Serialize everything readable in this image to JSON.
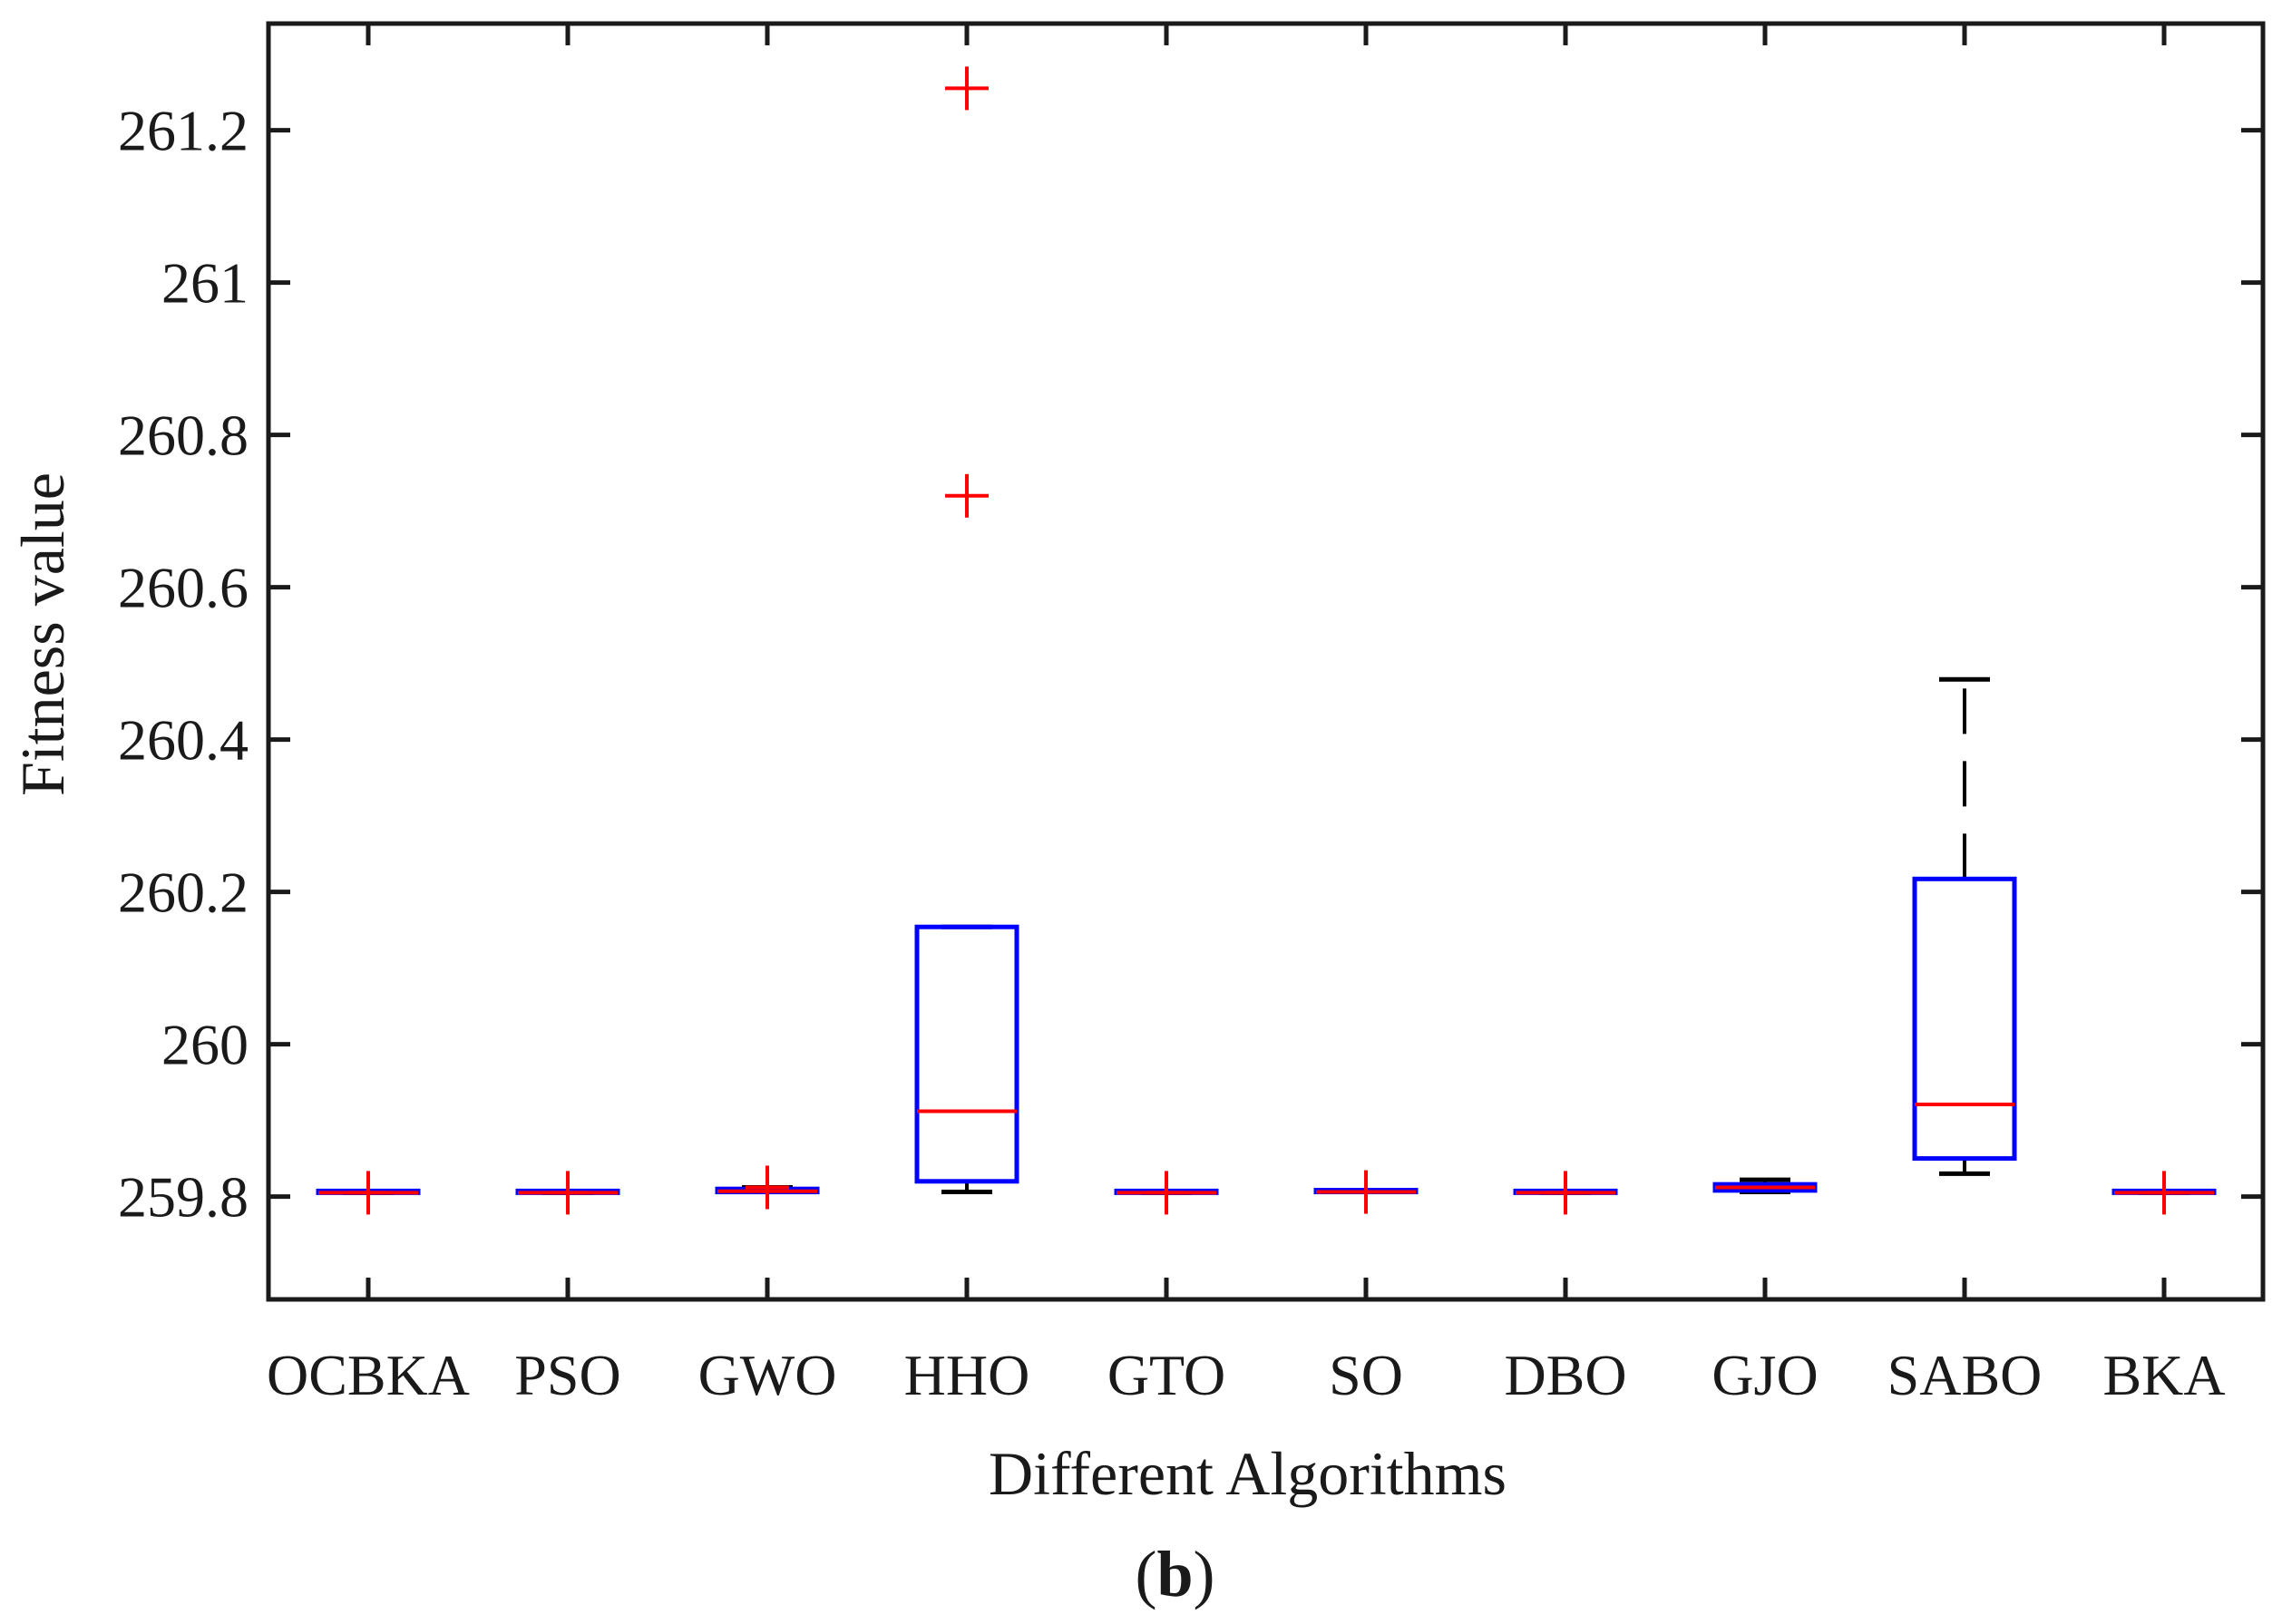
{
  "chart_data": {
    "type": "boxplot",
    "xlabel": "Different Algorithms",
    "ylabel": "Fitness value",
    "panel_label": "b",
    "ylim": [
      259.665,
      261.34
    ],
    "yticks": [
      259.8,
      260,
      260.2,
      260.4,
      260.6,
      260.8,
      261,
      261.2
    ],
    "ytick_labels": [
      "259.8",
      "260",
      "260.2",
      "260.4",
      "260.6",
      "260.8",
      "261",
      "261.2"
    ],
    "categories": [
      "OCBKA",
      "PSO",
      "GWO",
      "HHO",
      "GTO",
      "SO",
      "DBO",
      "GJO",
      "SABO",
      "BKA"
    ],
    "boxes": [
      {
        "name": "OCBKA",
        "q1": 259.805,
        "median": 259.805,
        "q3": 259.805,
        "whisker_low": 259.805,
        "whisker_high": 259.805,
        "outliers": [
          259.805
        ]
      },
      {
        "name": "PSO",
        "q1": 259.805,
        "median": 259.805,
        "q3": 259.805,
        "whisker_low": 259.805,
        "whisker_high": 259.805,
        "outliers": [
          259.805
        ]
      },
      {
        "name": "GWO",
        "q1": 259.806,
        "median": 259.807,
        "q3": 259.81,
        "whisker_low": 259.806,
        "whisker_high": 259.812,
        "outliers": [
          259.812
        ]
      },
      {
        "name": "HHO",
        "q1": 259.82,
        "median": 259.912,
        "q3": 260.154,
        "whisker_low": 259.806,
        "whisker_high": 260.154,
        "outliers": [
          260.72,
          261.255
        ]
      },
      {
        "name": "GTO",
        "q1": 259.805,
        "median": 259.805,
        "q3": 259.805,
        "whisker_low": 259.805,
        "whisker_high": 259.805,
        "outliers": [
          259.805
        ]
      },
      {
        "name": "SO",
        "q1": 259.806,
        "median": 259.806,
        "q3": 259.807,
        "whisker_low": 259.806,
        "whisker_high": 259.807,
        "outliers": [
          259.806
        ]
      },
      {
        "name": "DBO",
        "q1": 259.805,
        "median": 259.805,
        "q3": 259.805,
        "whisker_low": 259.805,
        "whisker_high": 259.805,
        "outliers": [
          259.805
        ]
      },
      {
        "name": "GJO",
        "q1": 259.808,
        "median": 259.812,
        "q3": 259.816,
        "whisker_low": 259.806,
        "whisker_high": 259.822,
        "outliers": []
      },
      {
        "name": "SABO",
        "q1": 259.85,
        "median": 259.921,
        "q3": 260.217,
        "whisker_low": 259.83,
        "whisker_high": 260.479,
        "outliers": []
      },
      {
        "name": "BKA",
        "q1": 259.805,
        "median": 259.805,
        "q3": 259.805,
        "whisker_low": 259.805,
        "whisker_high": 259.805,
        "outliers": [
          259.805
        ]
      }
    ],
    "colors": {
      "box": "#0000ff",
      "median": "#ff0000",
      "whisker": "#000000",
      "outlier": "#ff0000",
      "axis": "#1a1a1a"
    },
    "grid": false
  }
}
